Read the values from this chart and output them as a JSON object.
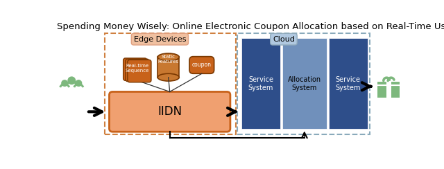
{
  "title": "Spending Money Wisely: Online Electronic Coupon Allocation based on Real-Time Use",
  "title_fontsize": 9.5,
  "bg_color": "#ffffff",
  "edge_devices_label": "Edge Devices",
  "cloud_label": "Cloud",
  "iidn_label": "IIDN",
  "realtime_label": "Real-time\nSequence",
  "static_label": "Static\nFeatures",
  "coupon_label": "coupon",
  "service1_label": "Service\nSystem",
  "alloc_label": "Allocation\nSystem",
  "service2_label": "Service\nSystem",
  "orange_dark": "#c8621a",
  "orange_mid": "#cc7722",
  "orange_light": "#f4a460",
  "orange_iidn": "#f0a070",
  "blue_dark": "#2e4e8a",
  "blue_light": "#7090bb",
  "green_icon": "#7db87d",
  "dashed_edge_color": "#d08040",
  "dashed_cloud_color": "#8aaabb",
  "edge_label_bg": "#f0c0a0",
  "cloud_label_bg": "#b0c8e0"
}
